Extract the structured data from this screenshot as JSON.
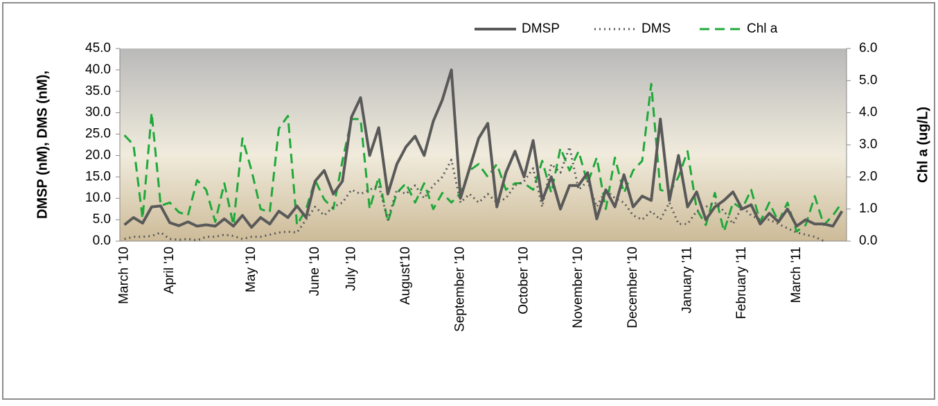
{
  "chart_data": {
    "type": "line",
    "categories": [
      "March '10",
      null,
      null,
      null,
      null,
      "April '10",
      null,
      null,
      null,
      null,
      null,
      null,
      null,
      null,
      "May '10",
      null,
      null,
      null,
      null,
      null,
      null,
      "June '10",
      null,
      null,
      null,
      "July '10",
      null,
      null,
      null,
      null,
      null,
      "August'10",
      null,
      null,
      null,
      null,
      null,
      "September '10",
      null,
      null,
      null,
      null,
      null,
      null,
      "October '10",
      null,
      null,
      null,
      null,
      null,
      "November '10",
      null,
      null,
      null,
      null,
      null,
      "December '10",
      null,
      null,
      null,
      null,
      null,
      "January '11",
      null,
      null,
      null,
      null,
      null,
      "February '11",
      null,
      null,
      null,
      null,
      null,
      "March '11",
      null,
      null,
      null,
      null,
      null
    ],
    "series": [
      {
        "name": "DMSP",
        "color": "#595959",
        "style": "solid",
        "values": [
          3.8,
          5.5,
          4.2,
          8,
          8.2,
          4.3,
          3.6,
          4.5,
          3.5,
          3.8,
          3.5,
          5.2,
          3.5,
          6,
          3.2,
          5.5,
          4,
          7,
          5.5,
          8.2,
          5.5,
          14,
          16.5,
          11,
          14,
          29,
          33.5,
          20,
          26.5,
          11,
          18,
          22,
          24.5,
          20,
          28,
          33,
          40,
          10,
          17,
          24,
          27.5,
          8,
          16,
          21,
          15,
          23.5,
          9.5,
          15,
          7.5,
          13,
          13,
          16,
          5.2,
          12,
          8,
          15.5,
          8,
          10.5,
          9.5,
          28.5,
          9.5,
          20,
          8,
          11.5,
          5,
          8,
          9.5,
          11.5,
          7.5,
          8.5,
          4,
          6.5,
          4.5,
          7.5,
          3.5,
          5,
          4,
          4,
          3.5,
          7
        ]
      },
      {
        "name": "DMS",
        "color": "#595959",
        "style": "dotted",
        "values": [
          0.5,
          1,
          1,
          1.2,
          2,
          0.5,
          0.3,
          0.5,
          0.2,
          1,
          1,
          1.5,
          1.2,
          0.5,
          1,
          1,
          1.5,
          2,
          2.2,
          2,
          5,
          8,
          6,
          8,
          9,
          12,
          11,
          12,
          13,
          5,
          12,
          11,
          13,
          10,
          13,
          15,
          19,
          9,
          11,
          9,
          11,
          9,
          10,
          13,
          14,
          17,
          8,
          18,
          16,
          22,
          12,
          14,
          8,
          12,
          10,
          9,
          6,
          5,
          7,
          5,
          9,
          4,
          4,
          7,
          8,
          9,
          7,
          4,
          8,
          6,
          5,
          5,
          4,
          3,
          2,
          1.5,
          1,
          0,
          null,
          null
        ]
      },
      {
        "name": "Chl a",
        "color": "#1fa83a",
        "style": "dashed",
        "axis": "y2",
        "values": [
          3.3,
          3.0,
          0.7,
          4.0,
          1.1,
          1.2,
          0.9,
          0.8,
          1.9,
          1.6,
          0.6,
          1.8,
          0.5,
          3.2,
          2.2,
          1.0,
          0.9,
          3.5,
          3.9,
          0.5,
          1.0,
          1.9,
          1.3,
          1.0,
          2.5,
          3.8,
          3.8,
          1.0,
          2.0,
          0.6,
          1.5,
          1.8,
          1.2,
          1.8,
          1.0,
          1.5,
          1.2,
          1.5,
          2.2,
          2.4,
          2.0,
          2.4,
          1.6,
          1.8,
          1.8,
          1.6,
          2.5,
          1.5,
          2.9,
          2.2,
          2.8,
          1.8,
          2.6,
          1.0,
          2.6,
          1.5,
          2.2,
          2.5,
          4.9,
          1.6,
          1.5,
          2.0,
          2.8,
          1.0,
          0.5,
          1.5,
          0.3,
          1.2,
          1.0,
          1.6,
          0.6,
          1.2,
          0.6,
          1.2,
          0.3,
          0.5,
          1.4,
          0.5,
          0.8,
          1.2
        ]
      }
    ],
    "ylabel": "DMSP (nM), DMS (nM),",
    "y2label": "Chl a (ug/L)",
    "ylim": [
      0,
      45
    ],
    "yticks": [
      {
        "value": 0,
        "label": "0.0"
      },
      {
        "value": 5,
        "label": "5.0"
      },
      {
        "value": 10,
        "label": "10.0"
      },
      {
        "value": 15,
        "label": "15.0"
      },
      {
        "value": 20,
        "label": "20.0"
      },
      {
        "value": 25,
        "label": "25.0"
      },
      {
        "value": 30,
        "label": "30.0"
      },
      {
        "value": 35,
        "label": "35.0"
      },
      {
        "value": 40,
        "label": "40.0"
      },
      {
        "value": 45,
        "label": "45.0"
      }
    ],
    "y2lim": [
      0,
      6
    ],
    "y2ticks": [
      {
        "value": 0,
        "label": "0.0"
      },
      {
        "value": 1,
        "label": "1.0"
      },
      {
        "value": 2,
        "label": "2.0"
      },
      {
        "value": 3,
        "label": "3.0"
      },
      {
        "value": 4,
        "label": "4.0"
      },
      {
        "value": 5,
        "label": "5.0"
      },
      {
        "value": 6,
        "label": "6.0"
      }
    ],
    "legend": "top"
  }
}
